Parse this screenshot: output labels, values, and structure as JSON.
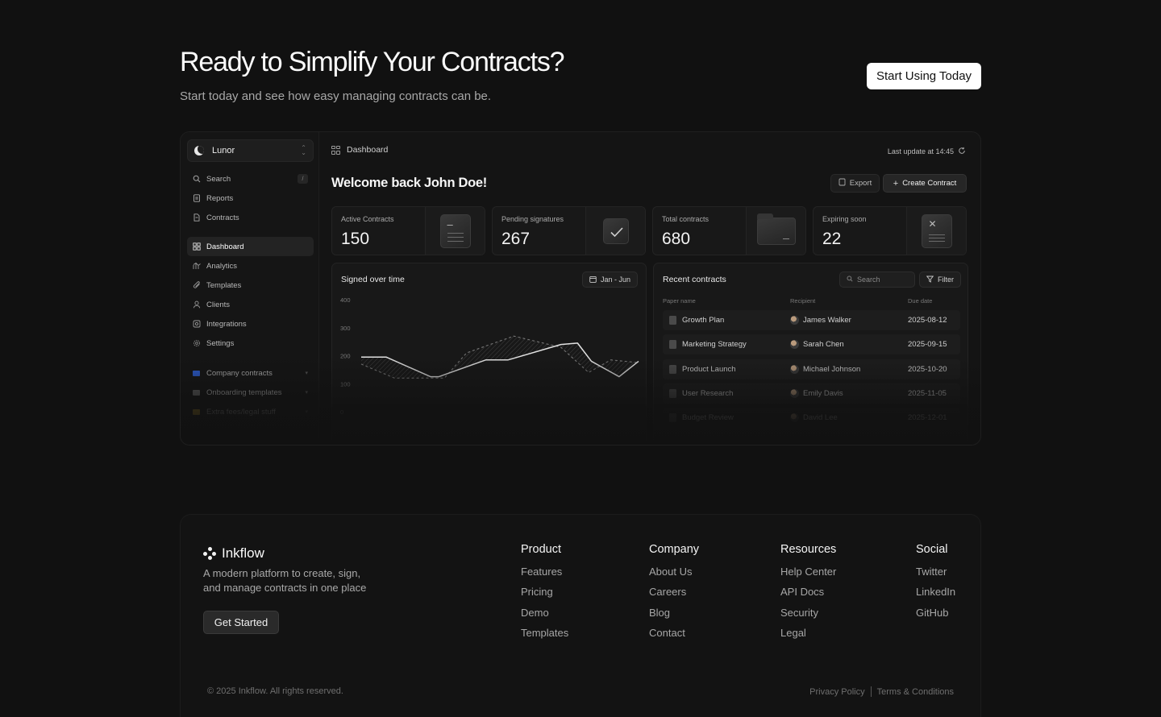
{
  "hero": {
    "title": "Ready to Simplify Your Contracts?",
    "subtitle": "Start today and see how easy managing contracts can be.",
    "cta_label": "Start Using Today"
  },
  "app": {
    "workspace": "Lunor",
    "nav_top": [
      {
        "label": "Search",
        "icon": "search-icon",
        "shortcut": "/"
      },
      {
        "label": "Reports",
        "icon": "reports-icon"
      },
      {
        "label": "Contracts",
        "icon": "contracts-icon"
      }
    ],
    "nav_main": [
      {
        "label": "Dashboard",
        "icon": "dashboard-icon",
        "active": true
      },
      {
        "label": "Analytics",
        "icon": "analytics-icon"
      },
      {
        "label": "Templates",
        "icon": "templates-icon"
      },
      {
        "label": "Clients",
        "icon": "clients-icon"
      },
      {
        "label": "Integrations",
        "icon": "integrations-icon"
      },
      {
        "label": "Settings",
        "icon": "settings-icon"
      }
    ],
    "folders": [
      {
        "label": "Company contracts",
        "color": "#2d5fd3"
      },
      {
        "label": "Onboarding templates",
        "color": "#6b6b6b"
      },
      {
        "label": "Extra fees/legal stuff",
        "color": "#c9a227"
      }
    ],
    "breadcrumb": "Dashboard",
    "last_update": "Last update at 14:45",
    "welcome": "Welcome back John Doe!",
    "export_label": "Export",
    "create_label": "Create Contract",
    "stats": [
      {
        "label": "Active Contracts",
        "value": "150",
        "icon": "document-icon"
      },
      {
        "label": "Pending signatures",
        "value": "267",
        "icon": "signature-check-icon"
      },
      {
        "label": "Total contracts",
        "value": "680",
        "icon": "folder-icon"
      },
      {
        "label": "Expiring soon",
        "value": "22",
        "icon": "expired-document-icon"
      }
    ],
    "signed_chart": {
      "title": "Signed over time",
      "range_label": "Jan - Jun"
    },
    "recent": {
      "title": "Recent contracts",
      "search_placeholder": "Search",
      "filter_label": "Filter",
      "columns": [
        "Paper name",
        "Recipient",
        "Due date"
      ],
      "rows": [
        {
          "paper": "Growth Plan",
          "recipient": "James Walker",
          "due": "2025-08-12"
        },
        {
          "paper": "Marketing Strategy",
          "recipient": "Sarah Chen",
          "due": "2025-09-15"
        },
        {
          "paper": "Product Launch",
          "recipient": "Michael Johnson",
          "due": "2025-10-20"
        },
        {
          "paper": "User Research",
          "recipient": "Emily Davis",
          "due": "2025-11-05"
        },
        {
          "paper": "Budget Review",
          "recipient": "David Lee",
          "due": "2025-12-01"
        }
      ]
    }
  },
  "chart_data": {
    "type": "line",
    "title": "Signed over time",
    "ylim": [
      0,
      400
    ],
    "yticks": [
      400,
      300,
      200,
      100,
      0
    ],
    "series": [
      {
        "x": [
          0,
          0.09,
          0.25,
          0.28,
          0.45,
          0.53,
          0.72,
          0.78,
          0.83,
          0.93,
          1.0
        ],
        "values": [
          195,
          195,
          125,
          125,
          185,
          185,
          240,
          245,
          180,
          125,
          180
        ]
      },
      {
        "x": [
          0,
          0.12,
          0.3,
          0.38,
          0.55,
          0.72,
          0.82,
          0.9,
          1.0
        ],
        "values": [
          170,
          120,
          120,
          210,
          270,
          230,
          140,
          185,
          175
        ]
      }
    ]
  },
  "footer": {
    "brand": "Inkflow",
    "description": "A modern platform to create, sign, and manage contracts in one place",
    "cta_label": "Get Started",
    "columns": [
      {
        "title": "Product",
        "links": [
          "Features",
          "Pricing",
          "Demo",
          "Templates"
        ]
      },
      {
        "title": "Company",
        "links": [
          "About Us",
          "Careers",
          "Blog",
          "Contact"
        ]
      },
      {
        "title": "Resources",
        "links": [
          "Help Center",
          "API Docs",
          "Security",
          "Legal"
        ]
      },
      {
        "title": "Social",
        "links": [
          "Twitter",
          "LinkedIn",
          "GitHub"
        ]
      }
    ],
    "copyright": "© 2025 Inkflow. All rights reserved.",
    "legal_links": [
      "Privacy Policy",
      "Terms & Conditions"
    ]
  }
}
